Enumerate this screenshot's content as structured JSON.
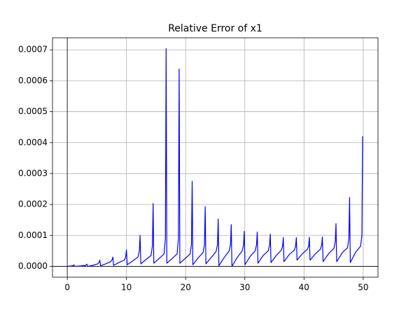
{
  "chart_data": {
    "type": "line",
    "title": "Relative Error of x1",
    "color": "#0000ff",
    "grid": true,
    "zero_lines": true,
    "xlim": [
      -2.5,
      52.5
    ],
    "xticks": [
      0,
      10,
      20,
      30,
      40,
      50
    ],
    "ylim": [
      -3.52e-05,
      0.000739
    ],
    "yticks": [
      {
        "value": 0,
        "label": "0.0000"
      },
      {
        "value": 0.0001,
        "label": "0.0001"
      },
      {
        "value": 0.0002,
        "label": "0.0002"
      },
      {
        "value": 0.0003,
        "label": "0.0003"
      },
      {
        "value": 0.0004,
        "label": "0.0004"
      },
      {
        "value": 0.0005,
        "label": "0.0005"
      },
      {
        "value": 0.0006,
        "label": "0.0006"
      },
      {
        "value": 0.0007,
        "label": "0.0007"
      }
    ],
    "x": [
      0,
      0.6,
      1.0,
      1.1,
      1.25,
      2.2,
      3.1,
      3.3,
      3.45,
      4.3,
      5.15,
      5.38,
      5.5,
      5.62,
      6.5,
      7.35,
      7.58,
      7.7,
      7.82,
      8.8,
      9.65,
      9.88,
      10.0,
      10.12,
      11.1,
      11.95,
      12.18,
      12.3,
      12.42,
      13.3,
      14.15,
      14.38,
      14.5,
      14.62,
      15.5,
      16.35,
      16.58,
      16.7,
      16.82,
      17.7,
      18.55,
      18.78,
      18.9,
      19.02,
      19.9,
      20.75,
      20.98,
      21.1,
      21.22,
      22.1,
      22.95,
      23.18,
      23.3,
      23.42,
      24.3,
      25.15,
      25.38,
      25.5,
      25.62,
      26.5,
      27.35,
      27.58,
      27.7,
      27.82,
      28.7,
      29.55,
      29.78,
      29.9,
      30.02,
      30.9,
      31.75,
      31.98,
      32.1,
      32.22,
      33.1,
      33.95,
      34.18,
      34.3,
      34.42,
      35.3,
      36.15,
      36.38,
      36.5,
      36.62,
      37.5,
      38.35,
      38.58,
      38.7,
      38.82,
      39.7,
      40.55,
      40.78,
      40.9,
      41.02,
      41.9,
      42.75,
      42.98,
      43.1,
      43.22,
      44.2,
      45.05,
      45.28,
      45.4,
      45.52,
      46.5,
      47.35,
      47.58,
      47.7,
      47.82,
      48.7,
      49.55,
      49.78,
      49.9
    ],
    "values": [
      0,
      1e-06,
      2e-06,
      5e-06,
      0,
      1e-06,
      3e-06,
      7e-06,
      0,
      3e-06,
      8e-06,
      1.3e-05,
      2e-05,
      2e-06,
      8e-06,
      1.5e-05,
      2.2e-05,
      3e-05,
      3e-06,
      1.3e-05,
      2e-05,
      3.2e-05,
      5.3e-05,
      5e-06,
      1.8e-05,
      3e-05,
      5e-05,
      0.0001,
      8e-06,
      2.2e-05,
      3.5e-05,
      6.5e-05,
      0.000203,
      1e-05,
      2.5e-05,
      4e-05,
      9e-05,
      0.000704,
      1e-05,
      2.5e-05,
      4e-05,
      9e-05,
      0.000638,
      1e-05,
      2.5e-05,
      4e-05,
      7e-05,
      0.000275,
      5e-06,
      2.7e-05,
      4.5e-05,
      7e-05,
      0.000193,
      8e-06,
      2.8e-05,
      4.8e-05,
      7e-05,
      0.000153,
      2e-06,
      2.8e-05,
      5e-05,
      7e-05,
      0.000135,
      0,
      2.8e-05,
      5e-05,
      6.8e-05,
      0.000113,
      5e-06,
      3.2e-05,
      5e-05,
      7e-05,
      0.000111,
      1e-05,
      3.5e-05,
      5e-05,
      6.8e-05,
      0.000104,
      1.2e-05,
      3.5e-05,
      5.2e-05,
      6.5e-05,
      9.3e-05,
      1.5e-05,
      3.8e-05,
      5.2e-05,
      6.5e-05,
      9.3e-05,
      2e-05,
      4e-05,
      5.5e-05,
      6.5e-05,
      9.4e-05,
      2e-05,
      4e-05,
      5.5e-05,
      6.8e-05,
      9.5e-05,
      1.5e-05,
      4.2e-05,
      5.8e-05,
      8e-05,
      0.000138,
      1.5e-05,
      4.5e-05,
      6e-05,
      9e-05,
      0.000223,
      1.2e-05,
      4.5e-05,
      6.5e-05,
      0.0001,
      0.000421
    ]
  }
}
